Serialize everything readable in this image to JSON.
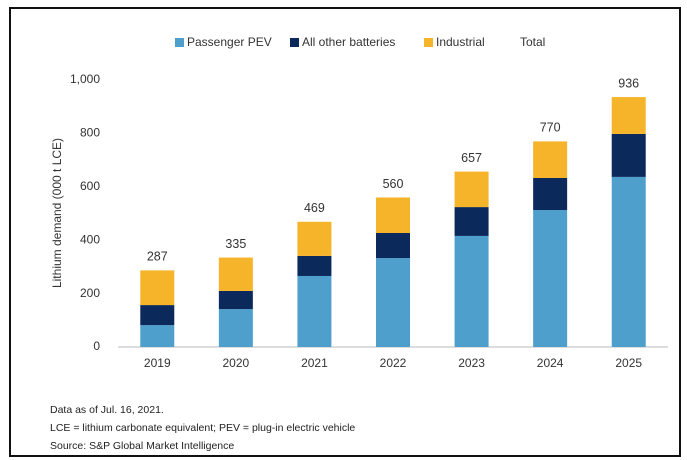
{
  "chart_data": {
    "type": "stacked_bar",
    "y_label": "Lithium demand (000 t LCE)",
    "categories": [
      "2019",
      "2020",
      "2021",
      "2022",
      "2023",
      "2024",
      "2025"
    ],
    "series": [
      {
        "name": "Passenger PEV",
        "color": "#4f9fcc",
        "values": [
          82,
          142,
          266,
          333,
          416,
          513,
          637
        ]
      },
      {
        "name": "All other batteries",
        "color": "#0b2a5b",
        "values": [
          75,
          68,
          75,
          94,
          108,
          120,
          161
        ]
      },
      {
        "name": "Industrial",
        "color": "#f6b42b",
        "values": [
          130,
          125,
          128,
          133,
          133,
          137,
          138
        ]
      },
      {
        "name": "Total",
        "values": [
          287,
          335,
          469,
          560,
          657,
          770,
          936
        ]
      }
    ],
    "ylim": [
      0,
      1000
    ],
    "yticks": [
      0,
      200,
      400,
      600,
      800,
      {
        "value": 1000,
        "label": "1,000"
      }
    ],
    "notes": [
      "Data as of Jul. 16, 2021.",
      "LCE = lithium carbonate equivalent; PEV = plug-in electric vehicle",
      "Source: S&P Global Market Intelligence"
    ]
  }
}
